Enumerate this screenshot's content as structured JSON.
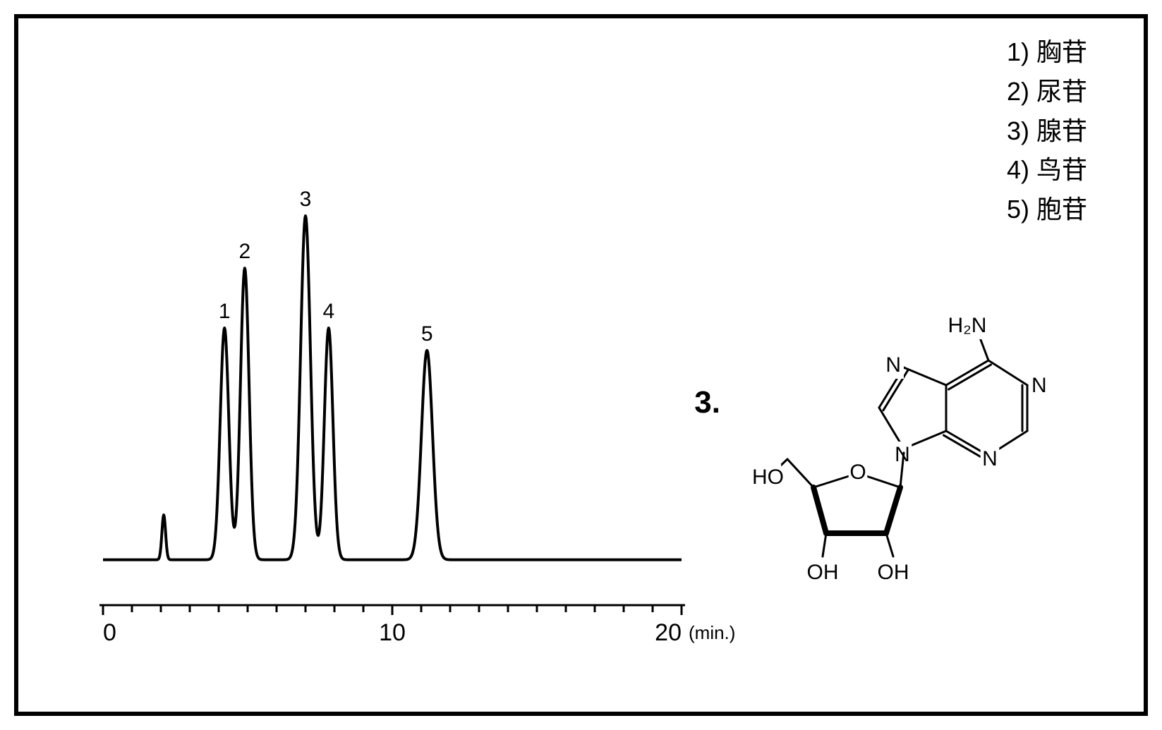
{
  "legend": {
    "items": [
      {
        "num": "1)",
        "label": "胸苷"
      },
      {
        "num": "2)",
        "label": "尿苷"
      },
      {
        "num": "3)",
        "label": "腺苷"
      },
      {
        "num": "4)",
        "label": "鸟苷"
      },
      {
        "num": "5)",
        "label": "胞苷"
      }
    ],
    "fontsize": 36
  },
  "chromatogram": {
    "type": "line",
    "x_axis": {
      "min": 0,
      "max": 20,
      "major_ticks": [
        0,
        10,
        20
      ],
      "minor_tick_step": 1,
      "unit_label": "(min.)",
      "label_fontsize": 34,
      "unit_fontsize": 26
    },
    "y_range": [
      0,
      100
    ],
    "baseline_y": 8,
    "line_color": "#000000",
    "line_width": 4,
    "peak_label_fontsize": 30,
    "injection_peak": {
      "rt": 2.1,
      "height": 12,
      "width": 0.15
    },
    "peaks": [
      {
        "id": "1",
        "rt": 4.2,
        "height": 62,
        "width": 0.35
      },
      {
        "id": "2",
        "rt": 4.9,
        "height": 78,
        "width": 0.35
      },
      {
        "id": "3",
        "rt": 7.0,
        "height": 92,
        "width": 0.4
      },
      {
        "id": "4",
        "rt": 7.8,
        "height": 62,
        "width": 0.35
      },
      {
        "id": "5",
        "rt": 11.2,
        "height": 56,
        "width": 0.45
      }
    ],
    "axis_color": "#000000",
    "tick_length_major": 14,
    "tick_length_minor": 10
  },
  "structure": {
    "label": "3.",
    "label_fontsize": 44,
    "atom_labels": {
      "HO1": "HO",
      "O_ring": "O",
      "N9": "N",
      "N7": "N",
      "N3": "N",
      "N1": "N",
      "H2N": "H₂N",
      "OH1": "OH",
      "OH2": "OH"
    },
    "bond_color": "#000000",
    "bond_width": 3,
    "bold_bond_width": 8,
    "text_color": "#000000",
    "atom_fontsize": 30
  },
  "frame": {
    "border_color": "#000000",
    "border_width": 6,
    "background": "#ffffff"
  }
}
